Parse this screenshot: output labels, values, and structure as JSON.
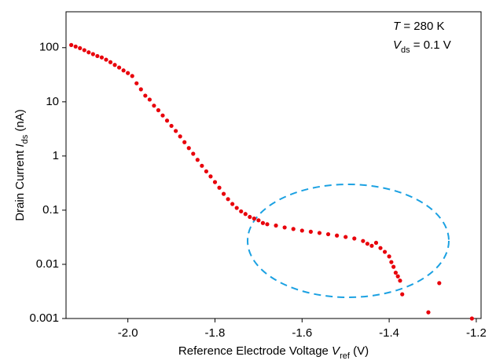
{
  "chart_data": {
    "type": "scatter",
    "x_label": [
      {
        "text": "Reference Electrode Voltage "
      },
      {
        "text": "V",
        "italic": true
      },
      {
        "text": "ref",
        "sub": true
      },
      {
        "text": " (V)"
      }
    ],
    "y_label": [
      {
        "text": "Drain Current "
      },
      {
        "text": "I",
        "italic": true
      },
      {
        "text": "ds",
        "sub": true
      },
      {
        "text": " (nA)"
      }
    ],
    "annotations": [
      [
        {
          "text": "T",
          "italic": true
        },
        {
          "text": " = 280 K"
        }
      ],
      [
        {
          "text": "V",
          "italic": true
        },
        {
          "text": "ds",
          "sub": true
        },
        {
          "text": " = 0.1 V"
        }
      ]
    ],
    "color": "#e8000b",
    "log_y": true,
    "xlim": [
      -2.142,
      -1.189
    ],
    "ylim": [
      0.001,
      460
    ],
    "xticks": [
      {
        "value": -2.0,
        "label": "-2.0"
      },
      {
        "value": -1.8,
        "label": "-1.8"
      },
      {
        "value": -1.6,
        "label": "-1.6"
      },
      {
        "value": -1.4,
        "label": "-1.4"
      },
      {
        "value": -1.2,
        "label": "-1.2"
      }
    ],
    "yticks": [
      100,
      10,
      1,
      0.1,
      0.01,
      0.001
    ],
    "x": [
      -2.13,
      -2.12,
      -2.11,
      -2.1,
      -2.09,
      -2.08,
      -2.07,
      -2.06,
      -2.05,
      -2.04,
      -2.03,
      -2.02,
      -2.01,
      -2.0,
      -1.99,
      -1.98,
      -1.97,
      -1.96,
      -1.95,
      -1.94,
      -1.93,
      -1.92,
      -1.91,
      -1.9,
      -1.89,
      -1.88,
      -1.87,
      -1.86,
      -1.85,
      -1.84,
      -1.83,
      -1.82,
      -1.81,
      -1.8,
      -1.79,
      -1.78,
      -1.77,
      -1.76,
      -1.75,
      -1.74,
      -1.73,
      -1.72,
      -1.71,
      -1.7,
      -1.69,
      -1.68,
      -1.66,
      -1.64,
      -1.62,
      -1.6,
      -1.58,
      -1.56,
      -1.54,
      -1.52,
      -1.5,
      -1.48,
      -1.46,
      -1.45,
      -1.44,
      -1.43,
      -1.42,
      -1.41,
      -1.4,
      -1.395,
      -1.39,
      -1.385,
      -1.38,
      -1.375,
      -1.37,
      -1.31,
      -1.285,
      -1.21
    ],
    "values": [
      112,
      105,
      98,
      90,
      82,
      76,
      70,
      66,
      60,
      54,
      48,
      43,
      38,
      34,
      30,
      22,
      17,
      13,
      11,
      8.5,
      7,
      5.6,
      4.5,
      3.6,
      2.9,
      2.3,
      1.8,
      1.4,
      1.1,
      0.85,
      0.66,
      0.52,
      0.42,
      0.33,
      0.26,
      0.2,
      0.16,
      0.13,
      0.11,
      0.095,
      0.085,
      0.075,
      0.07,
      0.065,
      0.058,
      0.055,
      0.052,
      0.048,
      0.045,
      0.042,
      0.04,
      0.038,
      0.036,
      0.034,
      0.032,
      0.03,
      0.027,
      0.024,
      0.022,
      0.025,
      0.02,
      0.017,
      0.014,
      0.011,
      0.009,
      0.007,
      0.006,
      0.005,
      0.0028,
      0.0013,
      0.0045,
      0.001
    ]
  }
}
